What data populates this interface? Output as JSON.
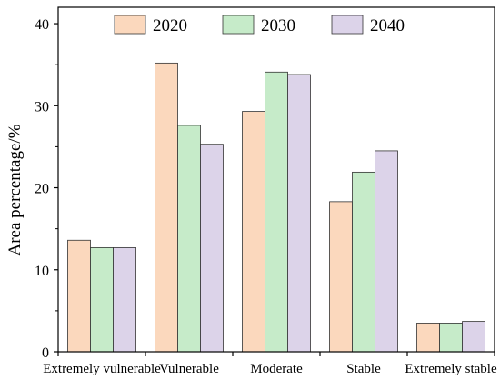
{
  "chart_data": {
    "type": "bar",
    "title": "",
    "xlabel": "",
    "ylabel": "Area percentage/%",
    "ylim": [
      0,
      42
    ],
    "yticks": [
      0,
      10,
      20,
      30,
      40
    ],
    "grid": false,
    "legend_position": "top",
    "categories": [
      "Extremely vulnerable",
      "Vulnerable",
      "Moderate",
      "Stable",
      "Extremely stable"
    ],
    "series": [
      {
        "name": "2020",
        "color": "#fbd8bd",
        "values": [
          13.6,
          35.2,
          29.3,
          18.3,
          3.5
        ]
      },
      {
        "name": "2030",
        "color": "#c6ebc9",
        "values": [
          12.7,
          27.6,
          34.1,
          21.9,
          3.5
        ]
      },
      {
        "name": "2040",
        "color": "#dcd3e9",
        "values": [
          12.7,
          25.3,
          33.8,
          24.5,
          3.7
        ]
      }
    ]
  }
}
